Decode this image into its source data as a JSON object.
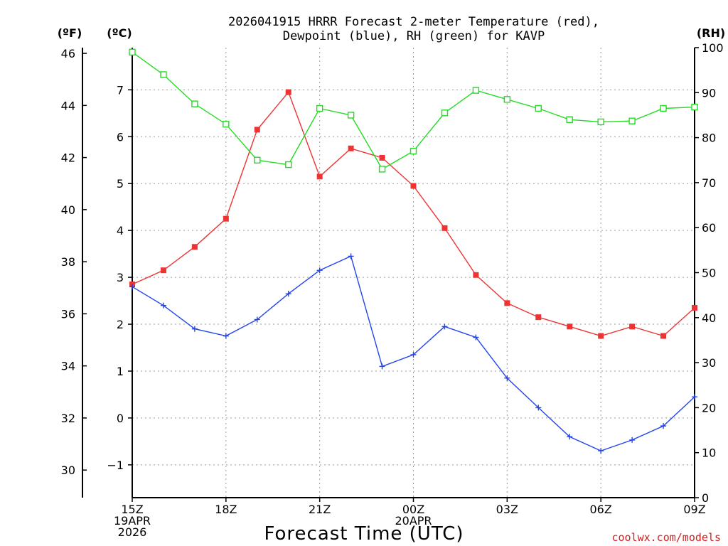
{
  "title": {
    "line1": "2026041915 HRRR Forecast 2-meter Temperature (red),",
    "line2": "Dewpoint (blue), RH (green) for KAVP"
  },
  "units": {
    "fahrenheit": "(ºF)",
    "celsius": "(ºC)",
    "rh": "(RH)"
  },
  "xlabel": "Forecast Time (UTC)",
  "credit": "coolwx.com/models",
  "chart_data": {
    "type": "line",
    "x_hours": [
      0,
      1,
      2,
      3,
      4,
      5,
      6,
      7,
      8,
      9,
      10,
      11,
      12,
      13,
      14,
      15,
      16,
      17,
      18
    ],
    "x_ticks": [
      {
        "hour": 0,
        "lines": [
          "15Z",
          "19APR",
          "2026"
        ]
      },
      {
        "hour": 3,
        "lines": [
          "18Z"
        ]
      },
      {
        "hour": 6,
        "lines": [
          "21Z"
        ]
      },
      {
        "hour": 9,
        "lines": [
          "00Z",
          "20APR"
        ]
      },
      {
        "hour": 12,
        "lines": [
          "03Z"
        ]
      },
      {
        "hour": 15,
        "lines": [
          "06Z"
        ]
      },
      {
        "hour": 18,
        "lines": [
          "09Z"
        ]
      }
    ],
    "xlim": [
      0,
      18
    ],
    "y_celsius": {
      "lim": [
        -1.7,
        7.9
      ],
      "ticks": [
        -1,
        0,
        1,
        2,
        3,
        4,
        5,
        6,
        7
      ]
    },
    "y_fahrenheit": {
      "ticks": [
        30,
        32,
        34,
        36,
        38,
        40,
        42,
        44,
        46
      ]
    },
    "y_rh": {
      "lim": [
        0,
        100
      ],
      "ticks": [
        0,
        10,
        20,
        30,
        40,
        50,
        60,
        70,
        80,
        90,
        100
      ]
    },
    "series": [
      {
        "name": "Temperature",
        "axis": "celsius",
        "color": "#ee3333",
        "marker": "filled-square",
        "values": [
          2.85,
          3.15,
          3.65,
          4.25,
          6.15,
          6.95,
          5.15,
          5.75,
          5.55,
          4.95,
          4.05,
          3.05,
          2.45,
          2.15,
          1.95,
          1.75,
          1.95,
          1.75,
          2.35
        ]
      },
      {
        "name": "Dewpoint",
        "axis": "celsius",
        "color": "#2244ee",
        "marker": "plus",
        "values": [
          2.8,
          2.4,
          1.9,
          1.75,
          2.1,
          2.65,
          3.15,
          3.45,
          1.1,
          1.35,
          1.95,
          1.72,
          0.85,
          0.22,
          -0.4,
          -0.7,
          -0.47,
          -0.17,
          0.45
        ]
      },
      {
        "name": "RH",
        "axis": "rh",
        "color": "#22dd22",
        "marker": "open-square",
        "values": [
          99,
          94,
          87.5,
          83,
          75,
          74,
          86.5,
          85,
          73,
          77,
          85.5,
          90.5,
          88.5,
          86.5,
          84,
          83.5,
          83.7,
          86.5,
          86.8
        ]
      }
    ]
  }
}
